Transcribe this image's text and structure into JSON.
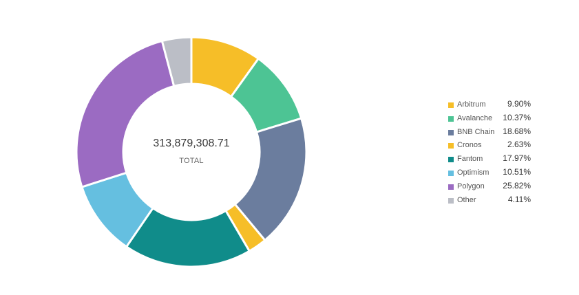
{
  "chart_data": {
    "type": "pie",
    "donut": true,
    "total_value": "313,879,308.71",
    "total_label": "TOTAL",
    "legend_position": "right",
    "slices": [
      {
        "name": "Arbitrum",
        "value": 9.9,
        "label": "9.90%",
        "color": "#f6be28"
      },
      {
        "name": "Avalanche",
        "value": 10.37,
        "label": "10.37%",
        "color": "#4dc494"
      },
      {
        "name": "BNB Chain",
        "value": 18.68,
        "label": "18.68%",
        "color": "#6b7d9e"
      },
      {
        "name": "Cronos",
        "value": 2.63,
        "label": "2.63%",
        "color": "#f6be28"
      },
      {
        "name": "Fantom",
        "value": 17.97,
        "label": "17.97%",
        "color": "#108c8a"
      },
      {
        "name": "Optimism",
        "value": 10.51,
        "label": "10.51%",
        "color": "#65bfe0"
      },
      {
        "name": "Polygon",
        "value": 25.82,
        "label": "25.82%",
        "color": "#9b6bc2"
      },
      {
        "name": "Other",
        "value": 4.11,
        "label": "4.11%",
        "color": "#bbbec6"
      }
    ]
  }
}
